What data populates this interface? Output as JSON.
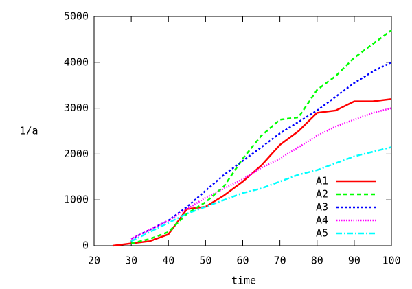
{
  "chart_data": {
    "type": "line",
    "x_label": "time",
    "y_label": "1/a",
    "x": [
      25,
      30,
      35,
      40,
      45,
      50,
      55,
      60,
      65,
      70,
      75,
      80,
      85,
      90,
      95,
      100
    ],
    "series": [
      {
        "name": "A1",
        "color": "#ff0000",
        "values": [
          0,
          50,
          100,
          250,
          800,
          850,
          1100,
          1400,
          1750,
          2200,
          2500,
          2900,
          2950,
          3150,
          3150,
          3200
        ]
      },
      {
        "name": "A2",
        "color": "#00ff00",
        "values": [
          null,
          50,
          150,
          300,
          700,
          950,
          1300,
          1900,
          2400,
          2750,
          2800,
          3400,
          3700,
          4100,
          4400,
          4700
        ]
      },
      {
        "name": "A3",
        "color": "#0000ff",
        "values": [
          null,
          150,
          350,
          550,
          850,
          1200,
          1550,
          1850,
          2150,
          2450,
          2700,
          2950,
          3250,
          3550,
          3800,
          4000
        ]
      },
      {
        "name": "A4",
        "color": "#ff00ff",
        "values": [
          null,
          150,
          350,
          550,
          800,
          1050,
          1250,
          1450,
          1700,
          1900,
          2150,
          2400,
          2600,
          2750,
          2900,
          3000
        ]
      },
      {
        "name": "A5",
        "color": "#00ffff",
        "values": [
          null,
          100,
          300,
          500,
          700,
          850,
          1000,
          1150,
          1250,
          1400,
          1550,
          1650,
          1800,
          1950,
          2050,
          2150
        ]
      }
    ],
    "xlim": [
      20,
      100
    ],
    "xticks": [
      20,
      30,
      40,
      50,
      60,
      70,
      80,
      90,
      100
    ],
    "ylim": [
      0,
      5000
    ],
    "yticks": [
      0,
      1000,
      2000,
      3000,
      4000,
      5000
    ],
    "grid": false,
    "legend": "lower right"
  }
}
